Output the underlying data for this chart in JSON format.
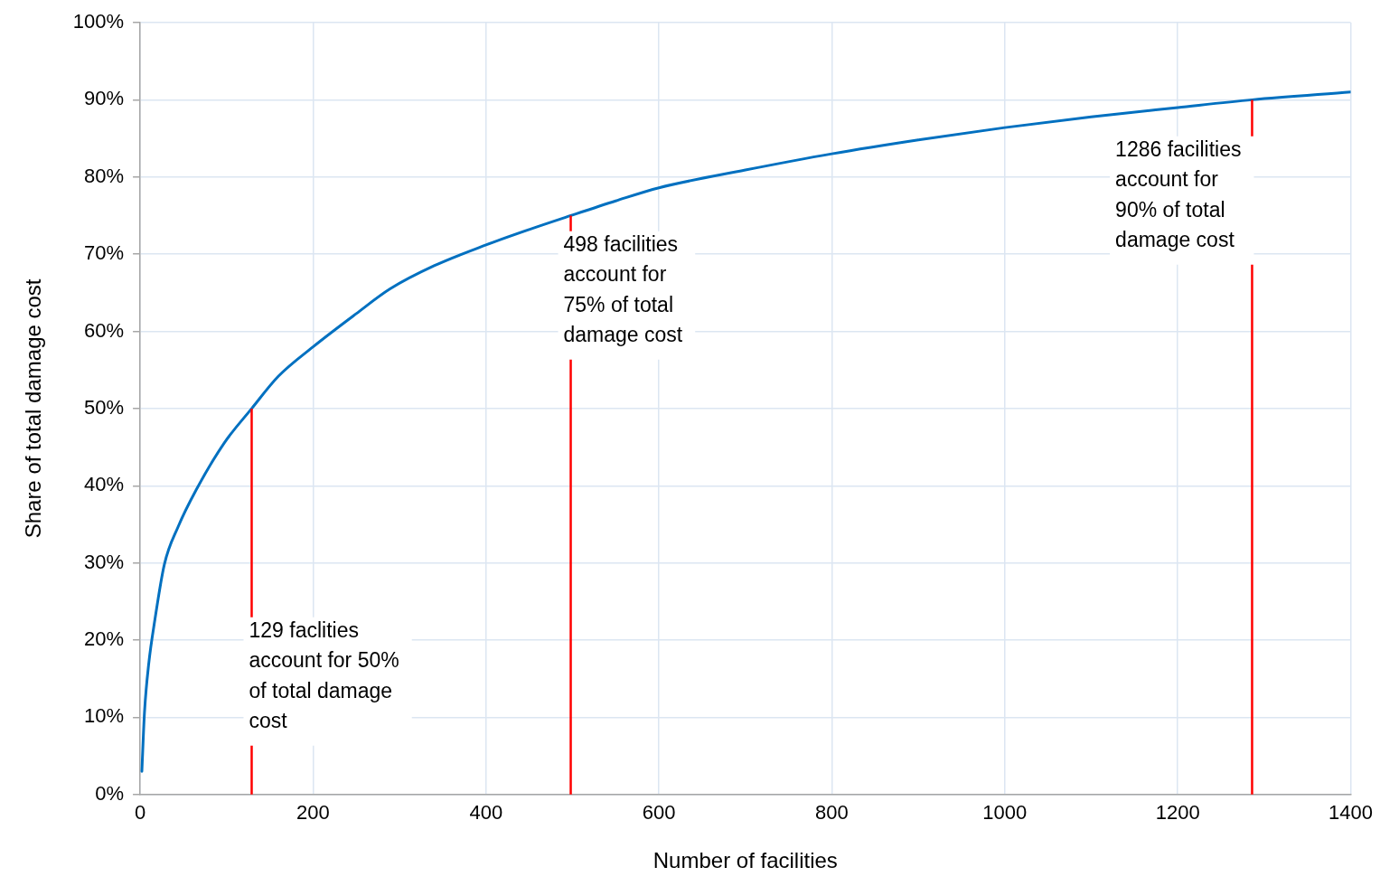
{
  "chart_data": {
    "type": "line",
    "xlabel": "Number of facilities",
    "ylabel": "Share of total damage cost",
    "x": [
      2,
      5,
      10,
      17,
      28,
      44,
      65,
      97,
      129,
      160,
      200,
      250,
      289,
      340,
      400,
      450,
      498,
      550,
      600,
      700,
      800,
      900,
      1000,
      1100,
      1200,
      1286,
      1400
    ],
    "series": [
      {
        "color": "#0070c0",
        "values": [
          3,
          10.6,
          17,
          22.6,
          29.8,
          34.7,
          39.5,
          45.5,
          50,
          54.2,
          58,
          62.3,
          65.5,
          68.5,
          71.2,
          73.2,
          75,
          76.9,
          78.6,
          80.9,
          83,
          84.8,
          86.4,
          87.8,
          89,
          90,
          91
        ]
      }
    ],
    "xlim": [
      0,
      1400
    ],
    "ylim": [
      0,
      100
    ],
    "xticks": [
      0,
      200,
      400,
      600,
      800,
      1000,
      1200,
      1400
    ],
    "yticks": [
      {
        "value": 0,
        "label": "0%"
      },
      {
        "value": 10,
        "label": "10%"
      },
      {
        "value": 20,
        "label": "20%"
      },
      {
        "value": 30,
        "label": "30%"
      },
      {
        "value": 40,
        "label": "40%"
      },
      {
        "value": 50,
        "label": "50%"
      },
      {
        "value": 60,
        "label": "60%"
      },
      {
        "value": 70,
        "label": "70%"
      },
      {
        "value": 80,
        "label": "80%"
      },
      {
        "value": 90,
        "label": "90%"
      },
      {
        "value": 100,
        "label": "100%"
      }
    ],
    "grid": true,
    "legend": false,
    "marker": "none",
    "line_style": "solid",
    "ref_lines": [
      {
        "axis": "x",
        "value": 129,
        "label": "129 faclities\naccount for 50%\nof total damage\ncost",
        "color": "#ff0000"
      },
      {
        "axis": "x",
        "value": 498,
        "label": "498 facilities\naccount for\n75% of total\ndamage cost",
        "color": "#ff0000"
      },
      {
        "axis": "x",
        "value": 1286,
        "label": "1286 facilities\naccount for\n90% of total\ndamage cost",
        "color": "#ff0000"
      }
    ]
  }
}
